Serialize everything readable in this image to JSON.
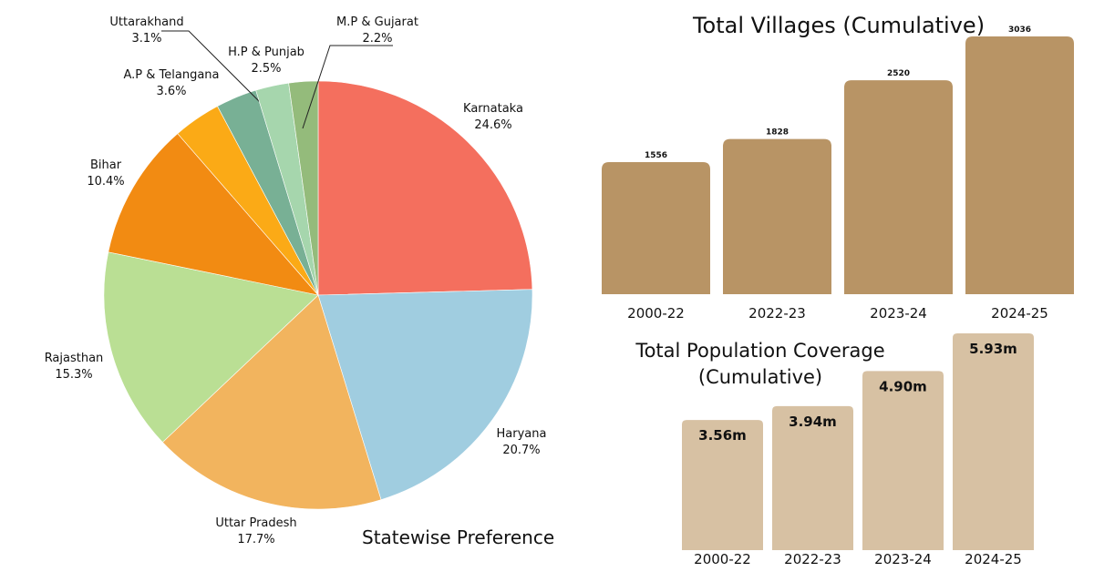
{
  "chart_data": [
    {
      "type": "pie",
      "caption": "Statewise Preference",
      "slices": [
        {
          "label": "Karnataka",
          "pct_label": "24.6%",
          "value": 24.6,
          "color": "#f46f5e"
        },
        {
          "label": "Haryana",
          "pct_label": "20.7%",
          "value": 20.7,
          "color": "#a0cde0"
        },
        {
          "label": "Uttar Pradesh",
          "pct_label": "17.7%",
          "value": 17.7,
          "color": "#f2b45e"
        },
        {
          "label": "Rajasthan",
          "pct_label": "15.3%",
          "value": 15.3,
          "color": "#badf94"
        },
        {
          "label": "Bihar",
          "pct_label": "10.4%",
          "value": 10.4,
          "color": "#f28b12"
        },
        {
          "label": "A.P & Telangana",
          "pct_label": "3.6%",
          "value": 3.6,
          "color": "#fbaa16"
        },
        {
          "label": "Uttarakhand",
          "pct_label": "3.1%",
          "value": 3.1,
          "color": "#78b095"
        },
        {
          "label": "H.P & Punjab",
          "pct_label": "2.5%",
          "value": 2.5,
          "color": "#a6d6ad"
        },
        {
          "label": "M.P & Gujarat",
          "pct_label": "2.2%",
          "value": 2.2,
          "color": "#94bb7b"
        }
      ]
    },
    {
      "type": "bar",
      "title": "Total Villages (Cumulative)",
      "categories": [
        "2000-22",
        "2022-23",
        "2023-24",
        "2024-25"
      ],
      "values": [
        1556,
        1828,
        2520,
        3036
      ],
      "value_labels": [
        "1556",
        "1828",
        "2520",
        "3036"
      ],
      "ylim": [
        0,
        3036
      ],
      "color": "#b89465"
    },
    {
      "type": "bar",
      "title": "Total Population Coverage (Cumulative)",
      "title_lines": [
        "Total Population Coverage",
        "(Cumulative)"
      ],
      "categories": [
        "2000-22",
        "2022-23",
        "2023-24",
        "2024-25"
      ],
      "values": [
        3.56,
        3.94,
        4.9,
        5.93
      ],
      "value_labels": [
        "3.56m",
        "3.94m",
        "4.90m",
        "5.93m"
      ],
      "ylim": [
        0,
        5.93
      ],
      "color": "#d7c1a3"
    }
  ]
}
